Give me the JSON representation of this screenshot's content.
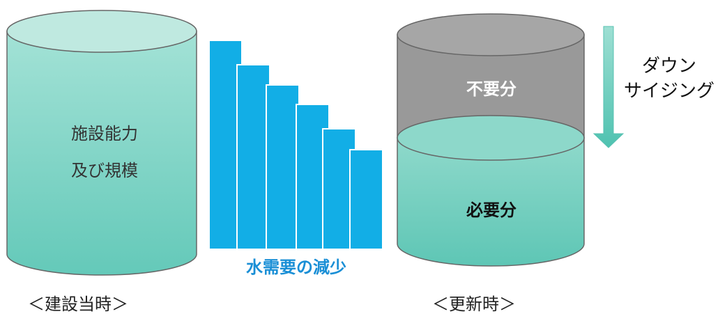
{
  "left_tank": {
    "lines": [
      "施設能力",
      "及び規模"
    ],
    "caption": "＜建設当時＞"
  },
  "demand": {
    "label": "水需要の減少"
  },
  "right_tank": {
    "top_label": "不要分",
    "bottom_label": "必要分",
    "caption": "＜更新時＞"
  },
  "downsizing": {
    "lines": [
      "ダウン",
      "サイジング"
    ]
  },
  "colors": {
    "teal_top": "#b6e6dc",
    "teal_body": "#7ed2c3",
    "teal_body_light": "#9fded2",
    "gray_body": "#9a9a9a",
    "gray_top": "#a4a4a4",
    "blue_bar": "#12aee6",
    "arrow": "#7fd3c6",
    "stroke": "#555555"
  }
}
